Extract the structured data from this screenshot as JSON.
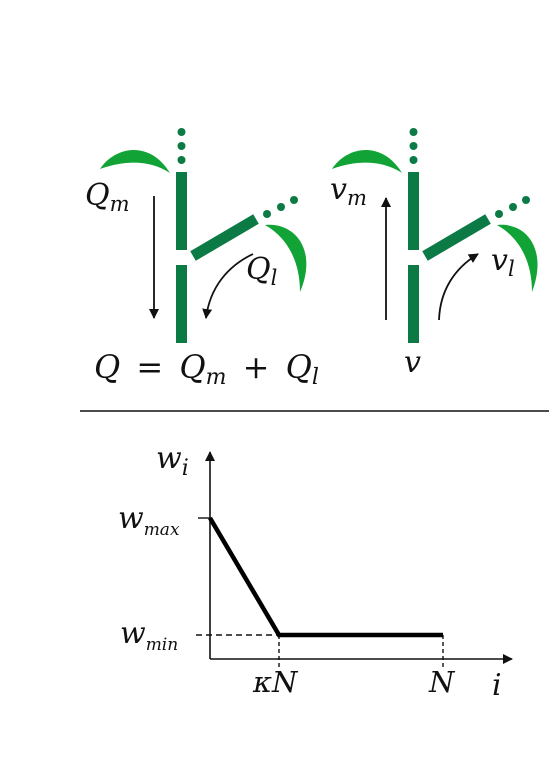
{
  "colors": {
    "stem": "#0b7a45",
    "leaf": "#12a337",
    "ink": "#111111"
  },
  "top_diagram": {
    "left_plant": {
      "q_main": "Q",
      "q_main_sub": "m",
      "q_leaf": "Q",
      "q_leaf_sub": "l",
      "equation": {
        "lhs": "Q",
        "eq": "=",
        "term1": "Q",
        "term1_sub": "m",
        "plus": "+",
        "term2": "Q",
        "term2_sub": "l"
      }
    },
    "right_plant": {
      "v_main": "v",
      "v_main_sub": "m",
      "v_leaf": "v",
      "v_leaf_sub": "l",
      "v_base": "v"
    }
  },
  "bottom_graph": {
    "y_axis_label": "w",
    "y_axis_sub": "i",
    "x_axis_label": "i",
    "wmax": "w",
    "wmax_sub": "max",
    "wmin": "w",
    "wmin_sub": "min",
    "tick_kappa_n": "κN",
    "tick_n": "N"
  }
}
